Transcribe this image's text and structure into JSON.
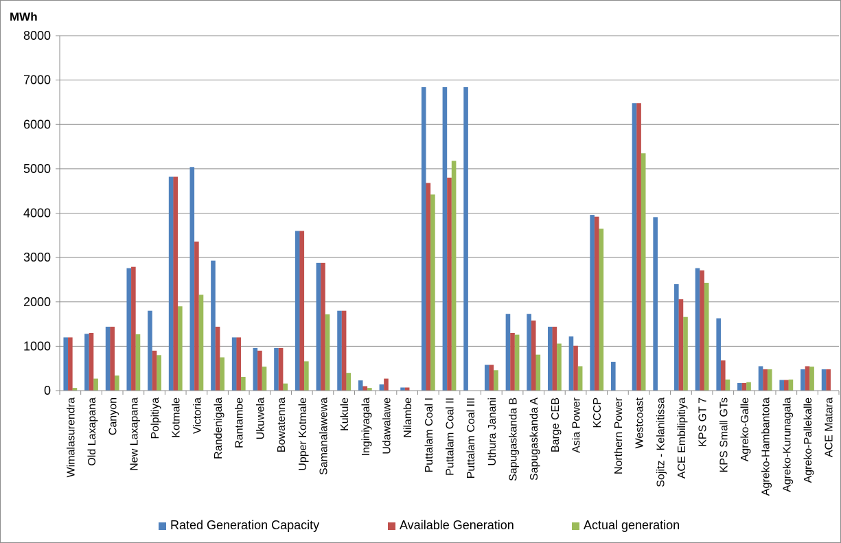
{
  "chart_data": {
    "type": "bar",
    "ylabel": "MWh",
    "ylim": [
      0,
      8000
    ],
    "yticks": [
      0,
      1000,
      2000,
      3000,
      4000,
      5000,
      6000,
      7000,
      8000
    ],
    "grid": true,
    "legend_position": "bottom",
    "categories": [
      "Wimalasurendra",
      "Old Laxapana",
      "Canyon",
      "New Laxapana",
      "Polpitiya",
      "Kotmale",
      "Victoria",
      "Randenigala",
      "Rantambe",
      "Ukuwela",
      "Bowatenna",
      "Upper Kotmale",
      "Samanalawewa",
      "Kukule",
      "Inginiyagala",
      "Udawalawe",
      "Nilambe",
      "Puttalam Coal I",
      "Puttalam Coal II",
      "Puttalam Coal III",
      "Uthura Janani",
      "Sapugaskanda B",
      "Sapugaskanda A",
      "Barge CEB",
      "Asia Power",
      "KCCP",
      "Northern Power",
      "Westcoast",
      "Sojitz - Kelanitissa",
      "ACE Embilipitiya",
      "KPS GT 7",
      "KPS Small GTs",
      "Agreko-Galle",
      "Agreko-Hambantota",
      "Agreko-Kurunagala",
      "Agreko-Pallekalle",
      "ACE Matara"
    ],
    "series": [
      {
        "name": "Rated Generation Capacity",
        "color": "#4F81BD",
        "values": [
          1200,
          1280,
          1440,
          2760,
          1800,
          4820,
          5040,
          2930,
          1200,
          960,
          960,
          3600,
          2880,
          1800,
          230,
          140,
          70,
          6840,
          6840,
          6840,
          580,
          1730,
          1730,
          1440,
          1220,
          3960,
          650,
          6480,
          3910,
          2400,
          2760,
          1630,
          170,
          550,
          240,
          480,
          480
        ]
      },
      {
        "name": "Available Generation",
        "color": "#C0504D",
        "values": [
          1200,
          1300,
          1440,
          2790,
          900,
          4820,
          3360,
          1440,
          1200,
          900,
          960,
          3600,
          2880,
          1800,
          100,
          270,
          70,
          4680,
          4800,
          0,
          580,
          1300,
          1580,
          1440,
          1010,
          3920,
          0,
          6480,
          0,
          2060,
          2710,
          680,
          170,
          480,
          240,
          550,
          480
        ]
      },
      {
        "name": "Actual generation",
        "color": "#9BBB59",
        "values": [
          60,
          270,
          340,
          1270,
          800,
          1900,
          2160,
          750,
          310,
          540,
          160,
          660,
          1720,
          400,
          60,
          0,
          0,
          4420,
          5180,
          0,
          460,
          1260,
          810,
          1060,
          550,
          3650,
          0,
          5350,
          0,
          1660,
          2430,
          250,
          190,
          480,
          250,
          540,
          0
        ]
      }
    ]
  }
}
